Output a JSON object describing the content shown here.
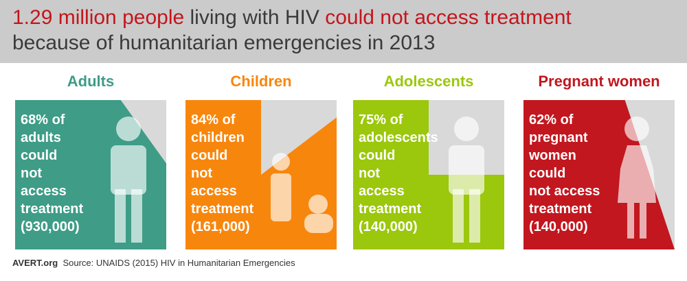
{
  "header": {
    "line1": {
      "highlight1": "1.29 million people",
      "middle": " living with HIV ",
      "highlight2": "could not access treatment"
    },
    "line2": "because of humanitarian emergencies in 2013"
  },
  "colors": {
    "header_bg": "#cbcbcb",
    "highlight": "#c4151c",
    "panel_bg": "#d9d9d9"
  },
  "chart_data": {
    "type": "area",
    "title": "1.29 million people living with HIV could not access treatment because of humanitarian emergencies in 2013",
    "categories": [
      "Adults",
      "Children",
      "Adolescents",
      "Pregnant women"
    ],
    "series": [
      {
        "name": "Adults",
        "percent": 68,
        "count": "930,000",
        "color": "#3e9c87",
        "icon": "adult-figure-icon",
        "lines": [
          "68% of",
          "adults",
          "could",
          "not",
          "access",
          "treatment",
          "(930,000)"
        ]
      },
      {
        "name": "Children",
        "percent": 84,
        "count": "161,000",
        "color": "#f7860d",
        "icon": "child-and-baby-figure-icon",
        "lines": [
          "84% of",
          "children",
          "could",
          "not",
          "access",
          "treatment",
          "(161,000)"
        ]
      },
      {
        "name": "Adolescents",
        "percent": 75,
        "count": "140,000",
        "color": "#9bc70c",
        "icon": "adolescent-figure-icon",
        "lines": [
          "75% of",
          "adolescents",
          "could",
          "not",
          "access",
          "treatment",
          "(140,000)"
        ]
      },
      {
        "name": "Pregnant women",
        "percent": 62,
        "count": "140,000",
        "color": "#c2171f",
        "icon": "pregnant-woman-figure-icon",
        "lines": [
          "62% of",
          "pregnant",
          "women",
          "could",
          "not access",
          "treatment",
          "(140,000)"
        ]
      }
    ]
  },
  "footer": {
    "brand": "AVERT.org",
    "source": "Source: UNAIDS (2015) HIV in Humanitarian Emergencies"
  }
}
